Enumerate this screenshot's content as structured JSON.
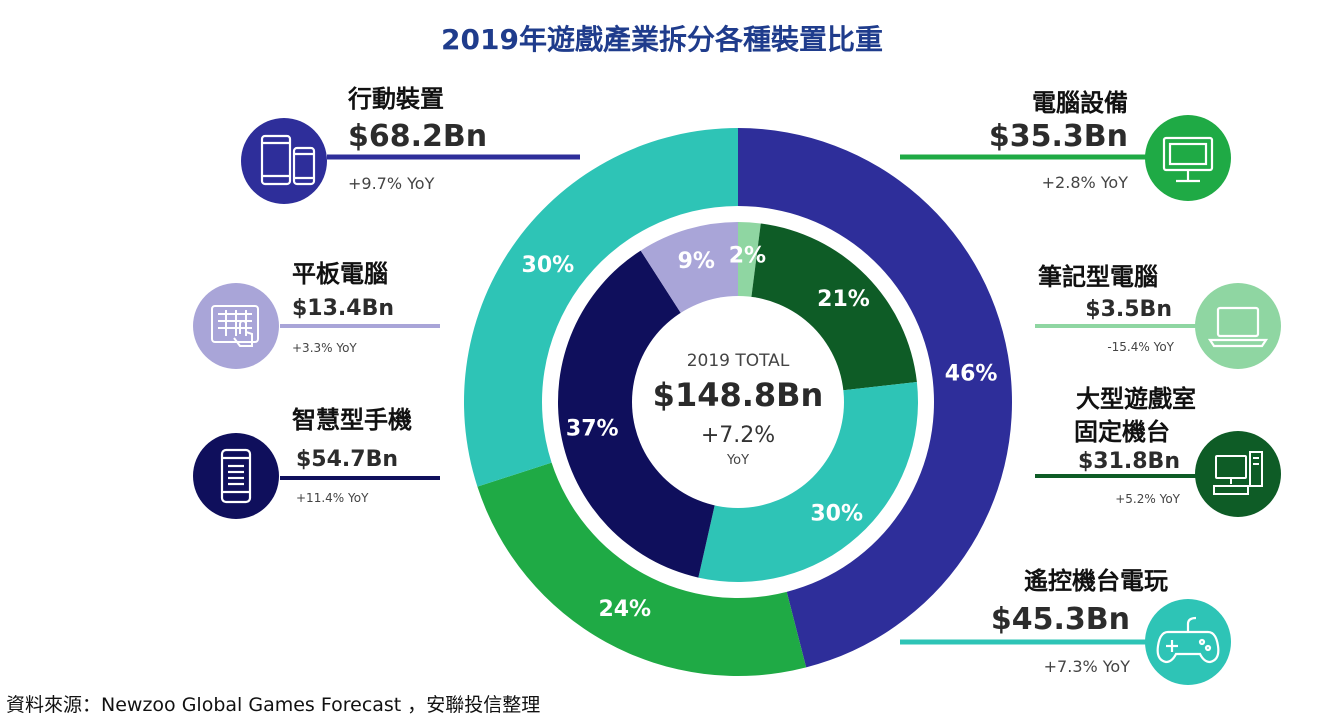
{
  "title": "2019年遊戲產業拆分各種裝置比重",
  "source": "資料來源：Newzoo Global Games Forecast ，安聯投信整理",
  "center": {
    "line1": "2019 TOTAL",
    "line2": "$148.8Bn",
    "line3": "+7.2%",
    "line4": "YoY"
  },
  "chart_data": {
    "type": "pie",
    "title": "2019年遊戲產業拆分各種裝置比重",
    "total": "$148.8Bn",
    "outer_ring": [
      {
        "name": "行動裝置",
        "value": 46,
        "label": "46%",
        "revenue": "$68.2Bn",
        "yoy": "+9.7% YoY",
        "color": "#2e2e9a"
      },
      {
        "name": "電腦設備",
        "value": 24,
        "label": "24%",
        "revenue": "$35.3Bn",
        "yoy": "+2.8% YoY",
        "color": "#1faa45"
      },
      {
        "name": "遙控機台電玩",
        "value": 30,
        "label": "30%",
        "revenue": "$45.3Bn",
        "yoy": "+7.3% YoY",
        "color": "#2ec4b6"
      }
    ],
    "inner_ring": [
      {
        "name": "筆記型電腦",
        "value": 2,
        "label": "2%",
        "revenue": "$3.5Bn",
        "yoy": "-15.4% YoY",
        "color": "#8fd6a2"
      },
      {
        "name": "大型遊戲室固定機台",
        "value": 21,
        "label": "21%",
        "revenue": "$31.8Bn",
        "yoy": "+5.2% YoY",
        "color": "#0e5c26"
      },
      {
        "name": "遙控機台電玩",
        "value": 30,
        "label": "30%",
        "revenue": "$45.3Bn",
        "yoy": "+7.3% YoY",
        "color": "#2ec4b6"
      },
      {
        "name": "智慧型手機",
        "value": 37,
        "label": "37%",
        "revenue": "$54.7Bn",
        "yoy": "+11.4% YoY",
        "color": "#0f0f5c"
      },
      {
        "name": "平板電腦",
        "value": 9,
        "label": "9%",
        "revenue": "$13.4Bn",
        "yoy": "+3.3% YoY",
        "color": "#a9a5d8"
      }
    ]
  },
  "callouts": [
    {
      "key": "mobile",
      "name": "行動裝置",
      "value": "$68.2Bn",
      "yoy": "+9.7% YoY",
      "icon": "mobile-devices-icon",
      "color": "#2e2e9a"
    },
    {
      "key": "tablet",
      "name": "平板電腦",
      "value": "$13.4Bn",
      "yoy": "+3.3% YoY",
      "icon": "tablet-icon",
      "color": "#a9a5d8"
    },
    {
      "key": "smartphone",
      "name": "智慧型手機",
      "value": "$54.7Bn",
      "yoy": "+11.4% YoY",
      "icon": "smartphone-icon",
      "color": "#0f0f5c"
    },
    {
      "key": "pc",
      "name": "電腦設備",
      "value": "$35.3Bn",
      "yoy": "+2.8% YoY",
      "icon": "monitor-icon",
      "color": "#1faa45"
    },
    {
      "key": "laptop",
      "name": "筆記型電腦",
      "value": "$3.5Bn",
      "yoy": "-15.4% YoY",
      "icon": "laptop-icon",
      "color": "#8fd6a2"
    },
    {
      "key": "arcade",
      "name1": "大型遊戲室",
      "name2": "固定機台",
      "value": "$31.8Bn",
      "yoy": "+5.2% YoY",
      "icon": "desktop-pc-icon",
      "color": "#0e5c26"
    },
    {
      "key": "console",
      "name": "遙控機台電玩",
      "value": "$45.3Bn",
      "yoy": "+7.3% YoY",
      "icon": "gamepad-icon",
      "color": "#2ec4b6"
    }
  ]
}
